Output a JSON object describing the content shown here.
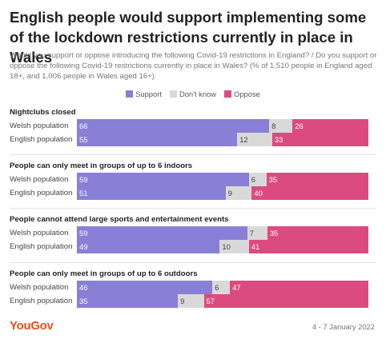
{
  "chart_data": {
    "type": "bar",
    "orientation": "horizontal",
    "stacked": true,
    "title": "English people would support implementing some of the lockdown restrictions currently in place in Wales",
    "subtitle": "Would you support or oppose introducing the following Covid-19 restrictions in England? / Do you support or oppose the following Covid-19 restrictions currently in place in Wales? (% of 1,510 people in England aged 18+, and 1,006 people in Wales aged 16+)",
    "legend": [
      "Support",
      "Don't know",
      "Oppose"
    ],
    "legend_position": "top",
    "colors": {
      "support": "#8a7fd6",
      "dontknow": "#d9d9d9",
      "oppose": "#dc4b7f"
    },
    "groups": [
      {
        "title": "Nightclubs closed",
        "rows": [
          {
            "label": "Welsh population",
            "support": 66,
            "dontknow": 8,
            "oppose": 26
          },
          {
            "label": "English population",
            "support": 55,
            "dontknow": 12,
            "oppose": 33
          }
        ]
      },
      {
        "title": "People can only meet in groups of up to 6 indoors",
        "rows": [
          {
            "label": "Welsh population",
            "support": 59,
            "dontknow": 6,
            "oppose": 35
          },
          {
            "label": "English population",
            "support": 51,
            "dontknow": 9,
            "oppose": 40
          }
        ]
      },
      {
        "title": "People cannot attend large sports and entertainment events",
        "rows": [
          {
            "label": "Welsh population",
            "support": 59,
            "dontknow": 7,
            "oppose": 35
          },
          {
            "label": "English population",
            "support": 49,
            "dontknow": 10,
            "oppose": 41
          }
        ]
      },
      {
        "title": "People can only meet in groups of up to 6 outdoors",
        "rows": [
          {
            "label": "Welsh population",
            "support": 46,
            "dontknow": 6,
            "oppose": 47
          },
          {
            "label": "English population",
            "support": 35,
            "dontknow": 9,
            "oppose": 57
          }
        ]
      }
    ]
  },
  "footer": {
    "brand": "YouGov",
    "date": "4 - 7 January 2022"
  }
}
